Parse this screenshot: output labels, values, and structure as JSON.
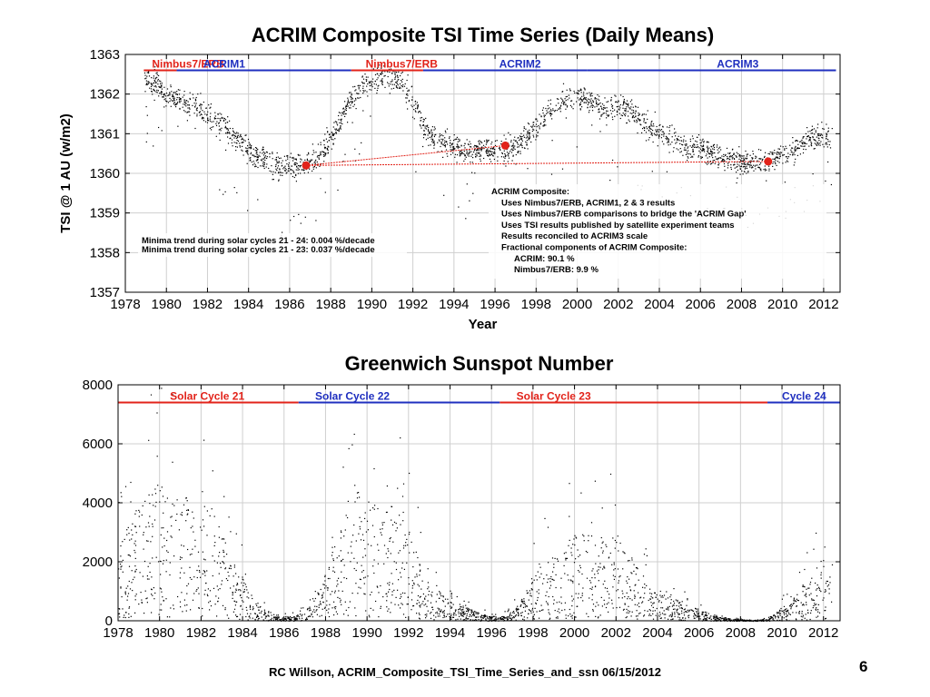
{
  "slide": {
    "footer": "RC Willson, ACRIM_Composite_TSI_Time_Series_and_ssn  06/15/2012",
    "page_number": "6"
  },
  "chart_data": [
    {
      "type": "scatter",
      "title": "ACRIM Composite TSI Time Series (Daily Means)",
      "xlabel": "Year",
      "ylabel": "TSI @ 1 AU (w/m2)",
      "xlim": [
        1978,
        2012.8
      ],
      "ylim": [
        1357,
        1363
      ],
      "xticks": [
        1978,
        1980,
        1982,
        1984,
        1986,
        1988,
        1990,
        1992,
        1994,
        1996,
        1998,
        2000,
        2002,
        2004,
        2006,
        2008,
        2010,
        2012
      ],
      "yticks": [
        1357,
        1358,
        1359,
        1360,
        1361,
        1362,
        1363
      ],
      "grid": true,
      "mission_bar": {
        "y": 1362.6,
        "segments": [
          {
            "label": "Nimbus7/ERB",
            "start": 1978.9,
            "end": 1980.5,
            "label_at": 1979.3,
            "color": "#e2231a"
          },
          {
            "label": "ACRIM1",
            "start": 1980.5,
            "end": 1989.0,
            "label_at": 1981.8,
            "color": "#1f2fbf"
          },
          {
            "label": "Nimbus7/ERB",
            "start": 1989.0,
            "end": 1992.5,
            "label_at": 1989.7,
            "color": "#e2231a"
          },
          {
            "label": "ACRIM2",
            "start": 1992.5,
            "end": 2000.5,
            "label_at": 1996.2,
            "color": "#1f2fbf"
          },
          {
            "label": "ACRIM3",
            "start": 2000.5,
            "end": 2012.6,
            "label_at": 2006.8,
            "color": "#1f2fbf"
          }
        ]
      },
      "series": [
        {
          "color": "#000000",
          "points": [
            [
              1978.9,
              1362.4
            ],
            [
              1979.5,
              1362.3
            ],
            [
              1980.0,
              1361.9
            ],
            [
              1980.5,
              1361.9
            ],
            [
              1981.0,
              1361.8
            ],
            [
              1981.5,
              1361.7
            ],
            [
              1982.0,
              1361.5
            ],
            [
              1982.5,
              1361.3
            ],
            [
              1983.0,
              1361.1
            ],
            [
              1983.5,
              1360.8
            ],
            [
              1984.0,
              1360.6
            ],
            [
              1984.5,
              1360.4
            ],
            [
              1985.0,
              1360.3
            ],
            [
              1985.5,
              1360.2
            ],
            [
              1986.0,
              1360.2
            ],
            [
              1986.5,
              1360.2
            ],
            [
              1987.0,
              1360.3
            ],
            [
              1987.5,
              1360.5
            ],
            [
              1988.0,
              1360.9
            ],
            [
              1988.5,
              1361.4
            ],
            [
              1989.0,
              1361.9
            ],
            [
              1989.5,
              1362.2
            ],
            [
              1990.0,
              1362.3
            ],
            [
              1990.5,
              1362.4
            ],
            [
              1991.0,
              1362.5
            ],
            [
              1991.5,
              1362.3
            ],
            [
              1992.0,
              1361.8
            ],
            [
              1992.5,
              1361.2
            ],
            [
              1993.0,
              1360.9
            ],
            [
              1993.5,
              1360.8
            ],
            [
              1994.0,
              1360.7
            ],
            [
              1994.5,
              1360.6
            ],
            [
              1995.0,
              1360.6
            ],
            [
              1995.5,
              1360.6
            ],
            [
              1996.0,
              1360.6
            ],
            [
              1996.5,
              1360.6
            ],
            [
              1997.0,
              1360.7
            ],
            [
              1997.5,
              1360.9
            ],
            [
              1998.0,
              1361.2
            ],
            [
              1998.5,
              1361.5
            ],
            [
              1999.0,
              1361.7
            ],
            [
              1999.5,
              1361.9
            ],
            [
              2000.0,
              1361.9
            ],
            [
              2000.5,
              1361.9
            ],
            [
              2001.0,
              1361.7
            ],
            [
              2001.5,
              1361.6
            ],
            [
              2002.0,
              1361.7
            ],
            [
              2002.5,
              1361.6
            ],
            [
              2003.0,
              1361.4
            ],
            [
              2003.5,
              1361.2
            ],
            [
              2004.0,
              1361.0
            ],
            [
              2004.5,
              1360.9
            ],
            [
              2005.0,
              1360.8
            ],
            [
              2005.5,
              1360.7
            ],
            [
              2006.0,
              1360.6
            ],
            [
              2006.5,
              1360.5
            ],
            [
              2007.0,
              1360.4
            ],
            [
              2007.5,
              1360.4
            ],
            [
              2008.0,
              1360.3
            ],
            [
              2008.5,
              1360.3
            ],
            [
              2009.0,
              1360.3
            ],
            [
              2009.5,
              1360.4
            ],
            [
              2010.0,
              1360.5
            ],
            [
              2010.5,
              1360.6
            ],
            [
              2011.0,
              1360.8
            ],
            [
              2011.5,
              1360.9
            ],
            [
              2012.0,
              1360.9
            ],
            [
              2012.4,
              1360.9
            ]
          ]
        }
      ],
      "minima_points": [
        [
          1986.8,
          1360.2
        ],
        [
          1996.5,
          1360.7
        ],
        [
          2009.3,
          1360.3
        ]
      ],
      "trend_lines": [
        {
          "from": [
            1986.8,
            1360.2
          ],
          "to": [
            1996.5,
            1360.7
          ],
          "color": "#e2231a"
        },
        {
          "from": [
            1986.8,
            1360.2
          ],
          "to": [
            2009.3,
            1360.3
          ],
          "color": "#e2231a"
        }
      ],
      "annotations": {
        "minima_trend": [
          "Minima trend during solar cycles 21 - 24:  0.004 %/decade",
          "Minima trend during solar cycles 21 - 23:  0.037 %/decade"
        ],
        "composite": [
          "ACRIM Composite:",
          "Uses Nimbus7/ERB, ACRIM1, 2 & 3  results",
          "Uses Nimbus7/ERB comparisons to bridge the 'ACRIM Gap'",
          "Uses TSI results published by satellite experiment teams",
          "Results reconciled to ACRIM3 scale",
          "Fractional components of ACRIM Composite:",
          "ACRIM:          90.1 %",
          "Nimbus7/ERB:   9.9 %"
        ]
      }
    },
    {
      "type": "scatter",
      "title": "Greenwich Sunspot Number",
      "xlabel": "",
      "ylabel": "",
      "xlim": [
        1978,
        2012.8
      ],
      "ylim": [
        0,
        8000
      ],
      "xticks": [
        1978,
        1980,
        1982,
        1984,
        1986,
        1988,
        1990,
        1992,
        1994,
        1996,
        1998,
        2000,
        2002,
        2004,
        2006,
        2008,
        2010,
        2012
      ],
      "yticks": [
        0,
        2000,
        4000,
        6000,
        8000
      ],
      "grid": true,
      "cycle_bar": {
        "y": 7400,
        "segments": [
          {
            "label": "Solar Cycle 21",
            "start": 1978,
            "end": 1986.7,
            "label_at": 1980.5,
            "color": "#e2231a"
          },
          {
            "label": "Solar Cycle 22",
            "start": 1986.7,
            "end": 1996.4,
            "label_at": 1987.5,
            "color": "#1f2fbf"
          },
          {
            "label": "Solar Cycle 23",
            "start": 1996.4,
            "end": 2009.3,
            "label_at": 1997.2,
            "color": "#e2231a"
          },
          {
            "label": "Cycle 24",
            "start": 2009.3,
            "end": 2012.8,
            "label_at": 2010.0,
            "color": "#1f2fbf"
          }
        ]
      },
      "series": [
        {
          "color": "#000000",
          "points": [
            [
              1978.0,
              1500
            ],
            [
              1978.5,
              2000
            ],
            [
              1979.0,
              2400
            ],
            [
              1979.5,
              2700
            ],
            [
              1980.0,
              2900
            ],
            [
              1980.5,
              2900
            ],
            [
              1981.0,
              2700
            ],
            [
              1981.5,
              2600
            ],
            [
              1982.0,
              2700
            ],
            [
              1982.5,
              2300
            ],
            [
              1983.0,
              1800
            ],
            [
              1983.5,
              1300
            ],
            [
              1984.0,
              900
            ],
            [
              1984.5,
              500
            ],
            [
              1985.0,
              250
            ],
            [
              1985.5,
              150
            ],
            [
              1986.0,
              100
            ],
            [
              1986.5,
              100
            ],
            [
              1987.0,
              200
            ],
            [
              1987.5,
              500
            ],
            [
              1988.0,
              1000
            ],
            [
              1988.5,
              1700
            ],
            [
              1989.0,
              2300
            ],
            [
              1989.5,
              2700
            ],
            [
              1990.0,
              2500
            ],
            [
              1990.5,
              2400
            ],
            [
              1991.0,
              2400
            ],
            [
              1991.5,
              2300
            ],
            [
              1992.0,
              1800
            ],
            [
              1992.5,
              1300
            ],
            [
              1993.0,
              800
            ],
            [
              1993.5,
              600
            ],
            [
              1994.0,
              400
            ],
            [
              1994.5,
              300
            ],
            [
              1995.0,
              250
            ],
            [
              1995.5,
              150
            ],
            [
              1996.0,
              100
            ],
            [
              1996.5,
              100
            ],
            [
              1997.0,
              200
            ],
            [
              1997.5,
              500
            ],
            [
              1998.0,
              900
            ],
            [
              1998.5,
              1200
            ],
            [
              1999.0,
              1400
            ],
            [
              1999.5,
              1600
            ],
            [
              2000.0,
              1800
            ],
            [
              2000.5,
              1900
            ],
            [
              2001.0,
              1700
            ],
            [
              2001.5,
              1800
            ],
            [
              2002.0,
              1800
            ],
            [
              2002.5,
              1500
            ],
            [
              2003.0,
              1100
            ],
            [
              2003.5,
              900
            ],
            [
              2004.0,
              700
            ],
            [
              2004.5,
              500
            ],
            [
              2005.0,
              450
            ],
            [
              2005.5,
              300
            ],
            [
              2006.0,
              250
            ],
            [
              2006.5,
              150
            ],
            [
              2007.0,
              100
            ],
            [
              2007.5,
              50
            ],
            [
              2008.0,
              30
            ],
            [
              2008.5,
              20
            ],
            [
              2009.0,
              30
            ],
            [
              2009.5,
              100
            ],
            [
              2010.0,
              300
            ],
            [
              2010.5,
              450
            ],
            [
              2011.0,
              700
            ],
            [
              2011.5,
              1000
            ],
            [
              2012.0,
              1300
            ],
            [
              2012.4,
              1300
            ]
          ]
        }
      ]
    }
  ]
}
